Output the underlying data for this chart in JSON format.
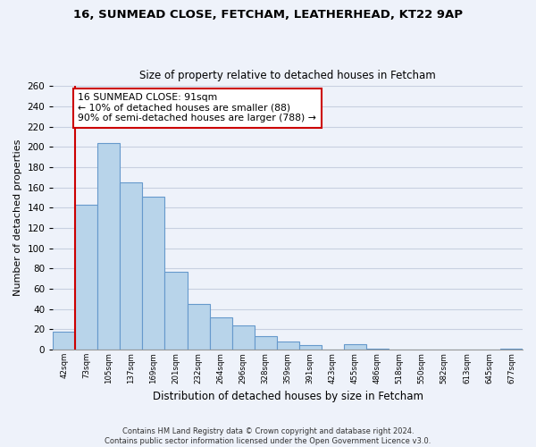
{
  "title1": "16, SUNMEAD CLOSE, FETCHAM, LEATHERHEAD, KT22 9AP",
  "title2": "Size of property relative to detached houses in Fetcham",
  "xlabel": "Distribution of detached houses by size in Fetcham",
  "ylabel": "Number of detached properties",
  "bin_labels": [
    "42sqm",
    "73sqm",
    "105sqm",
    "137sqm",
    "169sqm",
    "201sqm",
    "232sqm",
    "264sqm",
    "296sqm",
    "328sqm",
    "359sqm",
    "391sqm",
    "423sqm",
    "455sqm",
    "486sqm",
    "518sqm",
    "550sqm",
    "582sqm",
    "613sqm",
    "645sqm",
    "677sqm"
  ],
  "bar_heights": [
    18,
    143,
    204,
    165,
    151,
    77,
    45,
    32,
    24,
    13,
    8,
    4,
    0,
    5,
    1,
    0,
    0,
    0,
    0,
    0,
    1
  ],
  "bar_color": "#b8d4ea",
  "bar_edge_color": "#6699cc",
  "vline_color": "#cc0000",
  "annotation_text": "16 SUNMEAD CLOSE: 91sqm\n← 10% of detached houses are smaller (88)\n90% of semi-detached houses are larger (788) →",
  "annotation_box_color": "#ffffff",
  "annotation_box_edge": "#cc0000",
  "ylim": [
    0,
    260
  ],
  "yticks": [
    0,
    20,
    40,
    60,
    80,
    100,
    120,
    140,
    160,
    180,
    200,
    220,
    240,
    260
  ],
  "footer": "Contains HM Land Registry data © Crown copyright and database right 2024.\nContains public sector information licensed under the Open Government Licence v3.0.",
  "bg_color": "#eef2fa",
  "plot_bg_color": "#eef2fa",
  "grid_color": "#c8d0e0"
}
